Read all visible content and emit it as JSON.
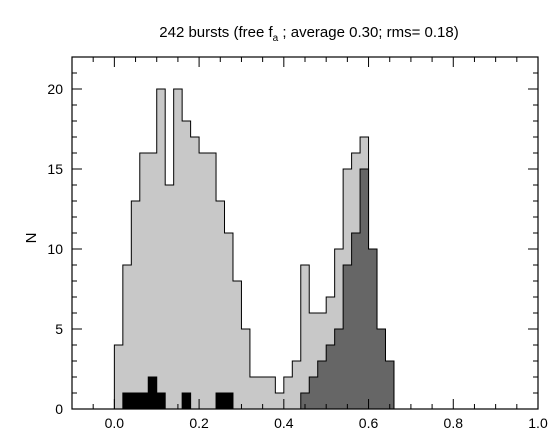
{
  "chart_data": {
    "type": "bar",
    "title": {
      "prefix": "242 bursts (free f",
      "subscript": "a",
      "suffix": " ; average   0.30; rms=  0.18)"
    },
    "xlabel": "",
    "ylabel": "N",
    "xlim": [
      -0.1,
      1.0
    ],
    "ylim": [
      0,
      22
    ],
    "bin_width": 0.02,
    "x_ticks": [
      "0.0",
      "0.2",
      "0.4",
      "0.6",
      "0.8",
      "1.0"
    ],
    "y_ticks": [
      "0",
      "5",
      "10",
      "15",
      "20"
    ],
    "series": [
      {
        "color": "#c8c8c8",
        "bin_starts": [
          0.0,
          0.02,
          0.04,
          0.06,
          0.08,
          0.1,
          0.12,
          0.14,
          0.16,
          0.18,
          0.2,
          0.22,
          0.24,
          0.26,
          0.28,
          0.3,
          0.32,
          0.34,
          0.36,
          0.38,
          0.4,
          0.42,
          0.44,
          0.46,
          0.48,
          0.5,
          0.52,
          0.54,
          0.56,
          0.58,
          0.6,
          0.62,
          0.64,
          0.66
        ],
        "values": [
          4,
          9,
          13,
          16,
          16,
          20,
          14,
          20,
          18,
          17,
          16,
          16,
          13,
          11,
          8,
          5,
          2,
          2,
          2,
          1,
          2,
          3,
          9,
          6,
          6,
          7,
          10,
          15,
          16,
          17,
          10,
          5,
          3,
          0
        ]
      },
      {
        "color": "#666666",
        "bin_starts": [
          0.44,
          0.46,
          0.48,
          0.5,
          0.52,
          0.54,
          0.56,
          0.58,
          0.6,
          0.62,
          0.64
        ],
        "values": [
          1,
          2,
          3,
          4,
          5,
          9,
          11,
          15,
          10,
          5,
          3
        ]
      },
      {
        "color": "#000000",
        "bin_starts": [
          0.02,
          0.04,
          0.06,
          0.08,
          0.1,
          0.12,
          0.14,
          0.16,
          0.18,
          0.2,
          0.22,
          0.24,
          0.26
        ],
        "values": [
          1,
          1,
          1,
          2,
          1,
          0,
          0,
          1,
          0,
          0,
          0,
          1,
          1
        ]
      }
    ]
  }
}
